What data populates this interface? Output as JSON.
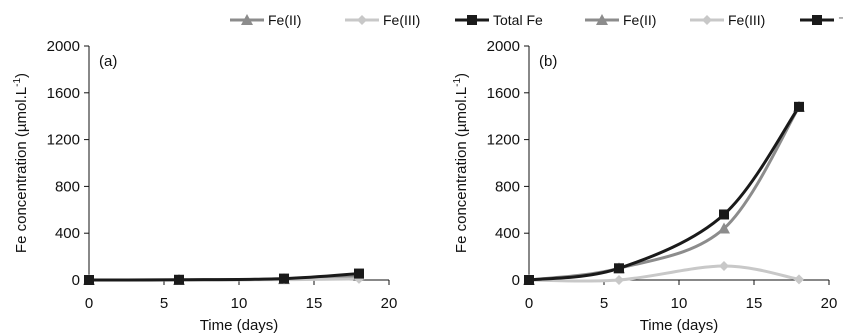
{
  "chart_data": [
    {
      "type": "line",
      "panel_label": "(a)",
      "xlabel": "Time (days)",
      "ylabel": "Fe concentration (µmol.L",
      "ylabel_sup": "-1",
      "ylabel_close": ")",
      "xlim": [
        0,
        20
      ],
      "ylim": [
        0,
        2000
      ],
      "xticks": [
        "0",
        "5",
        "10",
        "15",
        "20"
      ],
      "yticks": [
        "0",
        "400",
        "800",
        "1200",
        "1600",
        "2000"
      ],
      "x": [
        0,
        6,
        13,
        18
      ],
      "series": [
        {
          "name": "Fe(II)",
          "values": [
            0,
            0,
            8,
            35
          ],
          "color": "#8c8c8c",
          "marker": "triangle"
        },
        {
          "name": "Fe(III)",
          "values": [
            0,
            0,
            3,
            10
          ],
          "color": "#c8c8c8",
          "marker": "diamond"
        },
        {
          "name": "Total Fe",
          "values": [
            0,
            2,
            12,
            55
          ],
          "color": "#1a1a1a",
          "marker": "square"
        }
      ],
      "grid": false,
      "legend_position": "top"
    },
    {
      "type": "line",
      "panel_label": "(b)",
      "xlabel": "Time (days)",
      "ylabel": "Fe concentration (µmol.L",
      "ylabel_sup": "-1",
      "ylabel_close": ")",
      "xlim": [
        0,
        20
      ],
      "ylim": [
        0,
        2000
      ],
      "xticks": [
        "0",
        "5",
        "10",
        "15",
        "20"
      ],
      "yticks": [
        "0",
        "400",
        "800",
        "1200",
        "1600",
        "2000"
      ],
      "x": [
        0,
        6,
        13,
        18
      ],
      "series": [
        {
          "name": "Fe(II)",
          "values": [
            0,
            100,
            440,
            1480
          ],
          "color": "#8c8c8c",
          "marker": "triangle"
        },
        {
          "name": "Fe(III)",
          "values": [
            0,
            0,
            120,
            5
          ],
          "color": "#c8c8c8",
          "marker": "diamond"
        },
        {
          "name": "⁻otal Fe",
          "values": [
            0,
            100,
            560,
            1480
          ],
          "color": "#1a1a1a",
          "marker": "square"
        }
      ],
      "grid": false,
      "legend_position": "top"
    }
  ]
}
